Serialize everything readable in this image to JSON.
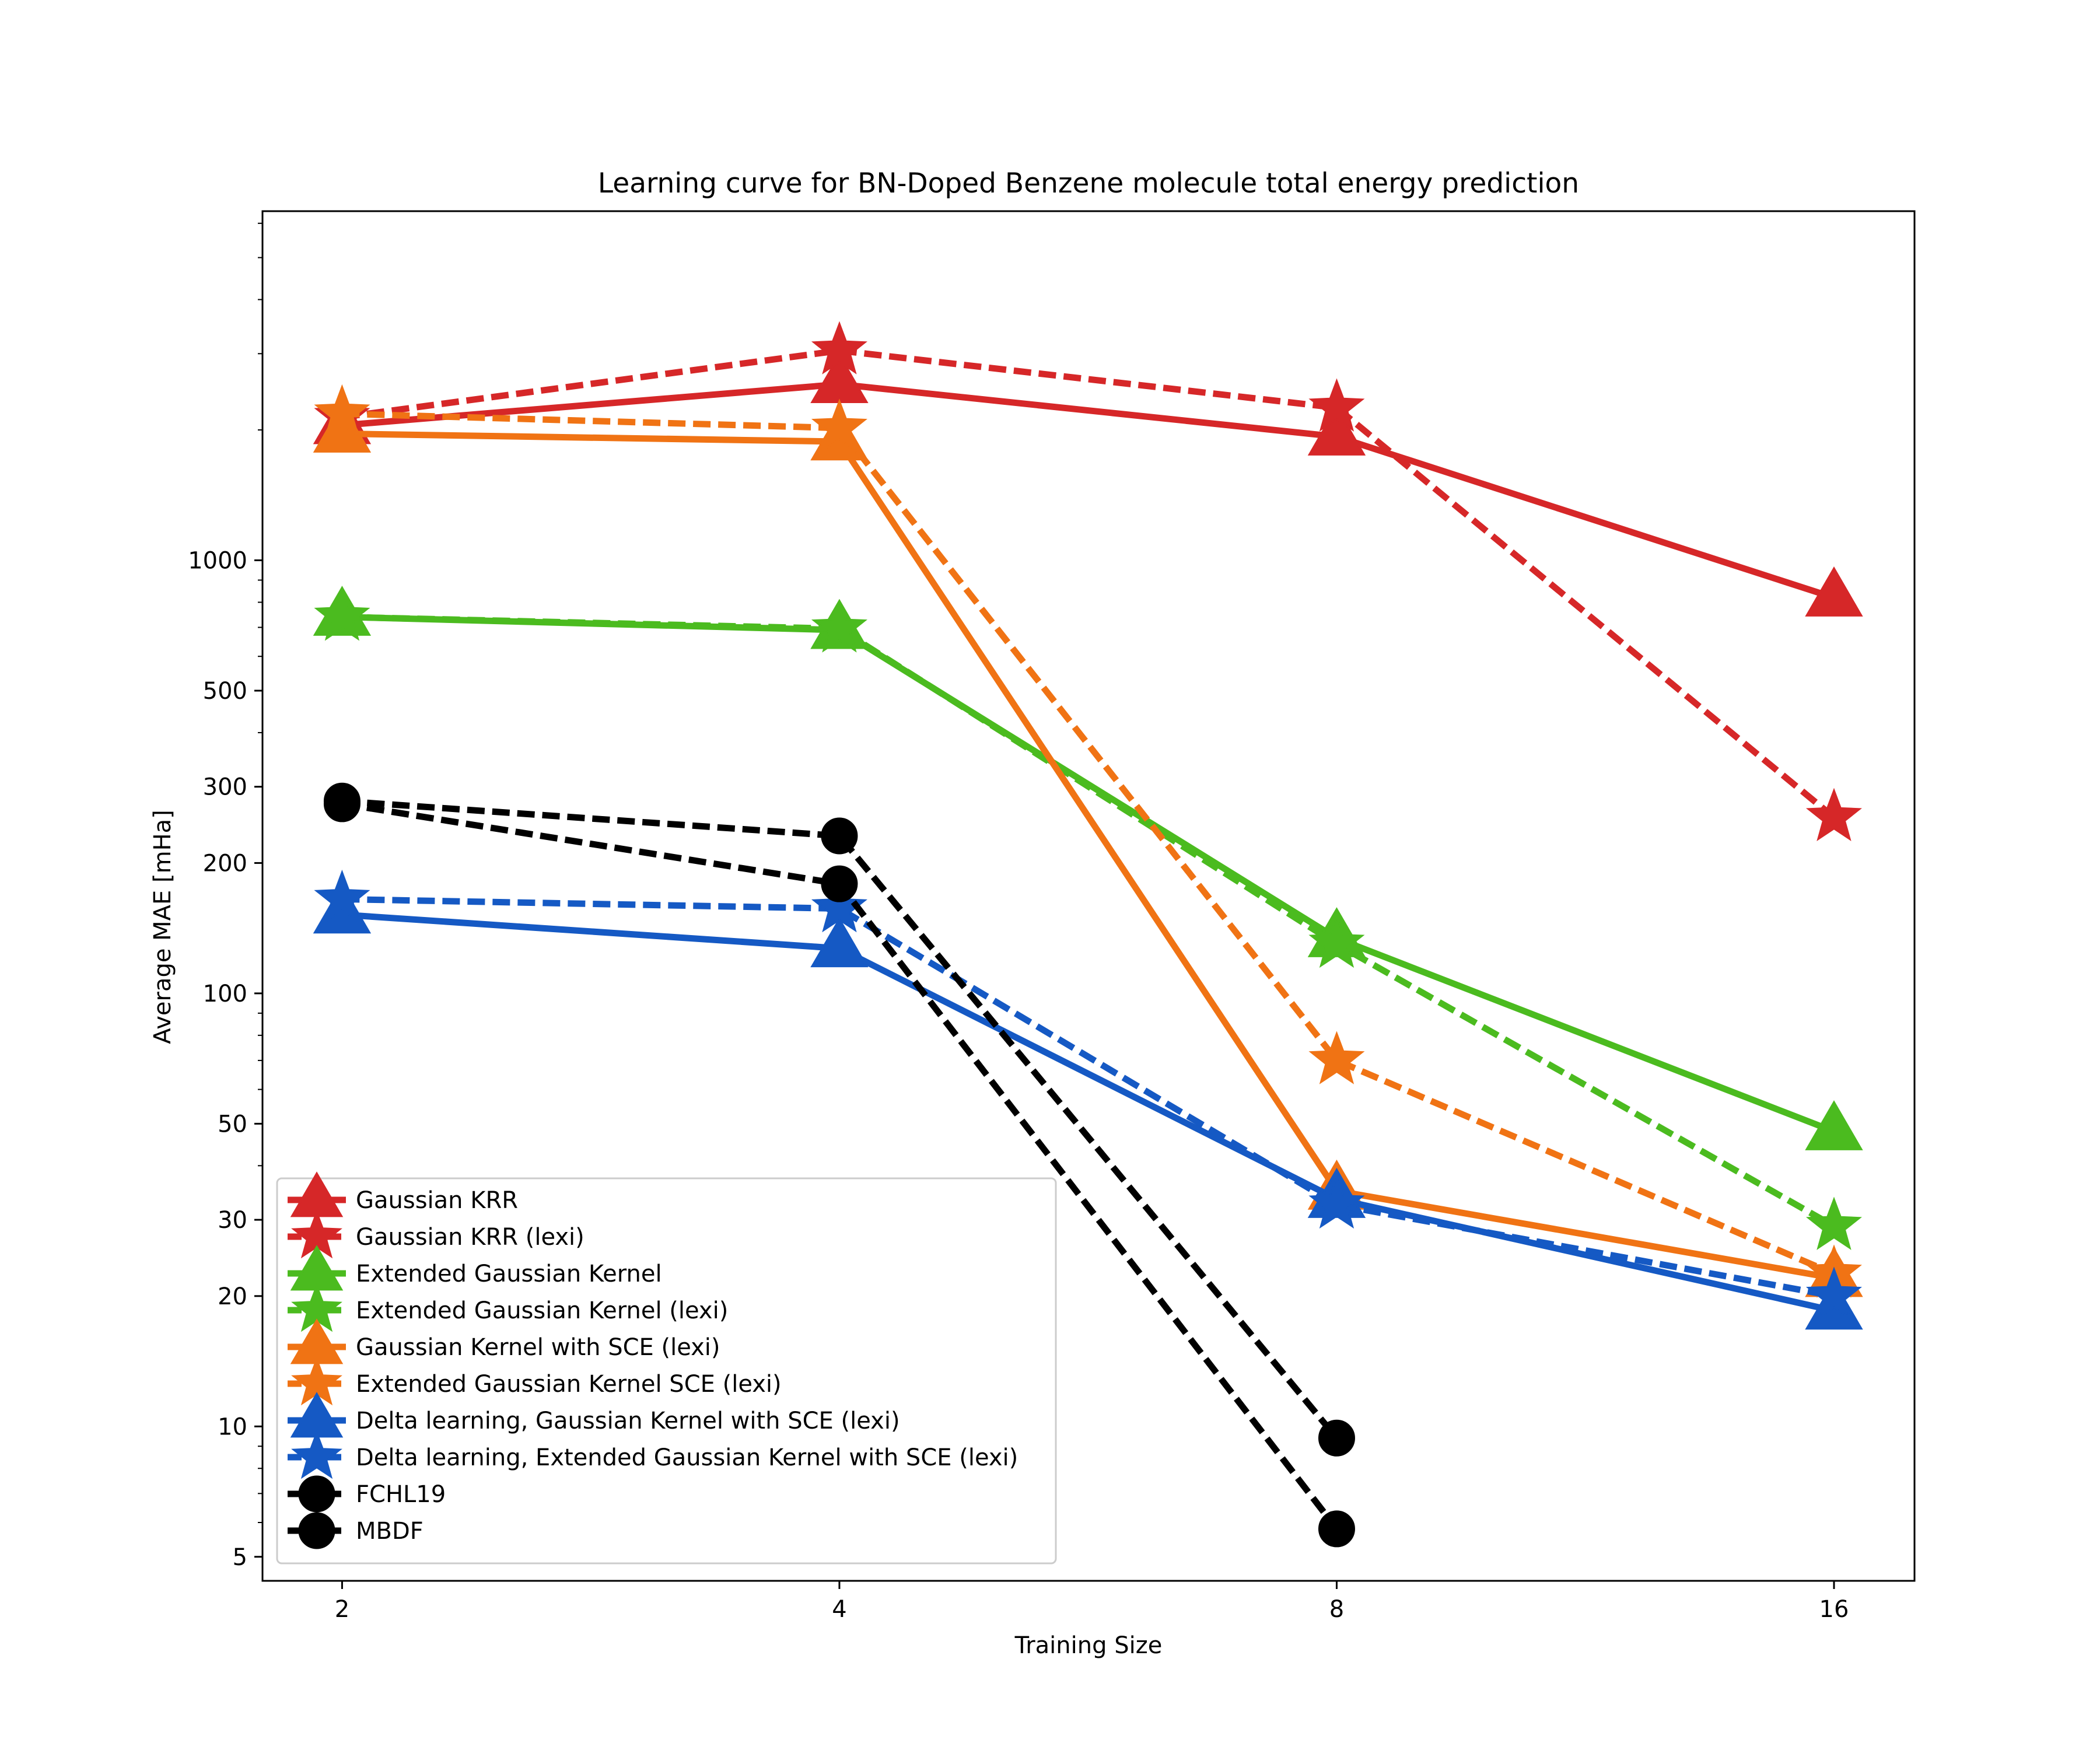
{
  "chart_data": {
    "type": "line",
    "title": "Learning curve for BN-Doped Benzene molecule total energy prediction",
    "xlabel": "Training Size",
    "ylabel": "Average MAE [mHa]",
    "x_scale": "log2",
    "y_scale": "log10",
    "xlim": [
      1.79,
      17.9
    ],
    "ylim": [
      4.4,
      6400
    ],
    "x_ticks": [
      2,
      4,
      8,
      16
    ],
    "x_tick_labels": [
      "2",
      "4",
      "8",
      "16"
    ],
    "y_ticks": [
      5,
      10,
      20,
      30,
      50,
      100,
      200,
      300,
      500,
      1000
    ],
    "y_tick_labels": [
      "5",
      "10",
      "20",
      "30",
      "50",
      "100",
      "200",
      "300",
      "500",
      "1000"
    ],
    "grid": false,
    "legend_position": "lower-left",
    "x": [
      2,
      4,
      8,
      16
    ],
    "series": [
      {
        "name": "Gaussian KRR",
        "color": "#d62728",
        "dash": "solid",
        "marker": "triangle",
        "values": [
          2050,
          2550,
          1930,
          820
        ]
      },
      {
        "name": "Gaussian KRR (lexi)",
        "color": "#d62728",
        "dash": "dashed",
        "marker": "star",
        "values": [
          2140,
          3050,
          2250,
          255
        ]
      },
      {
        "name": "Extended Gaussian Kernel",
        "color": "#4bbb1f",
        "dash": "solid",
        "marker": "triangle",
        "values": [
          740,
          690,
          134,
          48
        ]
      },
      {
        "name": "Extended Gaussian Kernel (lexi)",
        "color": "#4bbb1f",
        "dash": "dashed",
        "marker": "star",
        "values": [
          740,
          695,
          130,
          29
        ]
      },
      {
        "name": "Gaussian Kernel with SCE (lexi)",
        "color": "#f07314",
        "dash": "solid",
        "marker": "triangle",
        "values": [
          1960,
          1880,
          35,
          22
        ]
      },
      {
        "name": "Extended Gaussian Kernel SCE (lexi)",
        "color": "#f07314",
        "dash": "dashed",
        "marker": "star",
        "values": [
          2180,
          2020,
          70,
          22.5
        ]
      },
      {
        "name": "Delta learning, Gaussian Kernel with SCE (lexi)",
        "color": "#1559c4",
        "dash": "solid",
        "marker": "triangle",
        "values": [
          152,
          127,
          33.5,
          18.5
        ]
      },
      {
        "name": "Delta learning, Extended Gaussian Kernel with SCE (lexi)",
        "color": "#1559c4",
        "dash": "dashed",
        "marker": "star",
        "values": [
          165,
          157,
          32.5,
          20
        ]
      },
      {
        "name": "FCHL19",
        "color": "#000000",
        "dash": "dashed",
        "marker": "circle",
        "x": [
          2,
          4,
          8
        ],
        "values": [
          278,
          231,
          9.4
        ]
      },
      {
        "name": "MBDF",
        "color": "#000000",
        "dash": "dashed",
        "marker": "circle",
        "x": [
          2,
          4,
          8
        ],
        "values": [
          274,
          179,
          5.8
        ]
      }
    ]
  }
}
